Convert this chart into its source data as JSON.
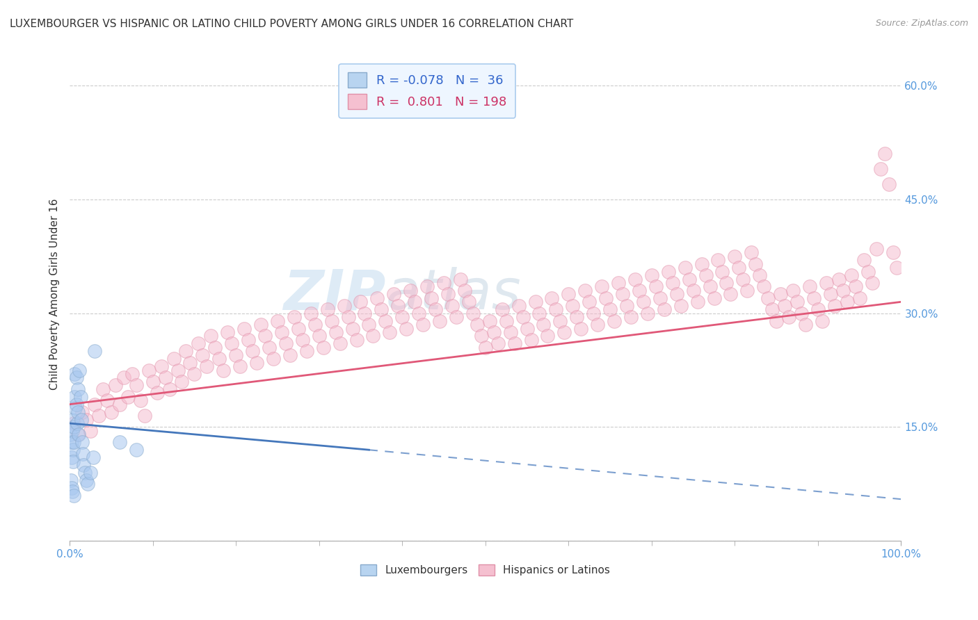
{
  "title": "LUXEMBOURGER VS HISPANIC OR LATINO CHILD POVERTY AMONG GIRLS UNDER 16 CORRELATION CHART",
  "source": "Source: ZipAtlas.com",
  "ylabel": "Child Poverty Among Girls Under 16",
  "xlim": [
    0,
    100
  ],
  "ylim": [
    0,
    65
  ],
  "yticks": [
    0,
    15,
    30,
    45,
    60
  ],
  "ytick_labels": [
    "",
    "15.0%",
    "30.0%",
    "45.0%",
    "60.0%"
  ],
  "xtick_labels": [
    "0.0%",
    "100.0%"
  ],
  "lux_color": "#a8c8f0",
  "hisp_color": "#f5b8cc",
  "lux_line_color": "#4477bb",
  "hisp_line_color": "#e05878",
  "background_color": "#ffffff",
  "grid_color": "#cccccc",
  "axis_color": "#aaaaaa",
  "tick_color": "#5599dd",
  "lux_scatter": [
    [
      0.1,
      14.0
    ],
    [
      0.2,
      13.0
    ],
    [
      0.2,
      11.0
    ],
    [
      0.3,
      16.0
    ],
    [
      0.3,
      14.5
    ],
    [
      0.4,
      12.0
    ],
    [
      0.4,
      10.5
    ],
    [
      0.5,
      15.0
    ],
    [
      0.5,
      13.0
    ],
    [
      0.6,
      22.0
    ],
    [
      0.6,
      19.0
    ],
    [
      0.7,
      17.5
    ],
    [
      0.8,
      21.5
    ],
    [
      0.8,
      18.0
    ],
    [
      0.9,
      15.5
    ],
    [
      1.0,
      20.0
    ],
    [
      1.0,
      17.0
    ],
    [
      1.1,
      14.0
    ],
    [
      1.2,
      22.5
    ],
    [
      1.3,
      19.0
    ],
    [
      1.4,
      16.0
    ],
    [
      1.5,
      13.0
    ],
    [
      1.6,
      11.5
    ],
    [
      1.7,
      10.0
    ],
    [
      1.8,
      9.0
    ],
    [
      2.0,
      8.0
    ],
    [
      2.2,
      7.5
    ],
    [
      2.5,
      9.0
    ],
    [
      2.8,
      11.0
    ],
    [
      3.0,
      25.0
    ],
    [
      0.15,
      8.0
    ],
    [
      0.25,
      7.0
    ],
    [
      0.35,
      6.5
    ],
    [
      0.45,
      6.0
    ],
    [
      6.0,
      13.0
    ],
    [
      8.0,
      12.0
    ]
  ],
  "hisp_scatter": [
    [
      0.5,
      15.5
    ],
    [
      1.0,
      14.0
    ],
    [
      1.5,
      17.0
    ],
    [
      2.0,
      16.0
    ],
    [
      2.5,
      14.5
    ],
    [
      3.0,
      18.0
    ],
    [
      3.5,
      16.5
    ],
    [
      4.0,
      20.0
    ],
    [
      4.5,
      18.5
    ],
    [
      5.0,
      17.0
    ],
    [
      5.5,
      20.5
    ],
    [
      6.0,
      18.0
    ],
    [
      6.5,
      21.5
    ],
    [
      7.0,
      19.0
    ],
    [
      7.5,
      22.0
    ],
    [
      8.0,
      20.5
    ],
    [
      8.5,
      18.5
    ],
    [
      9.0,
      16.5
    ],
    [
      9.5,
      22.5
    ],
    [
      10.0,
      21.0
    ],
    [
      10.5,
      19.5
    ],
    [
      11.0,
      23.0
    ],
    [
      11.5,
      21.5
    ],
    [
      12.0,
      20.0
    ],
    [
      12.5,
      24.0
    ],
    [
      13.0,
      22.5
    ],
    [
      13.5,
      21.0
    ],
    [
      14.0,
      25.0
    ],
    [
      14.5,
      23.5
    ],
    [
      15.0,
      22.0
    ],
    [
      15.5,
      26.0
    ],
    [
      16.0,
      24.5
    ],
    [
      16.5,
      23.0
    ],
    [
      17.0,
      27.0
    ],
    [
      17.5,
      25.5
    ],
    [
      18.0,
      24.0
    ],
    [
      18.5,
      22.5
    ],
    [
      19.0,
      27.5
    ],
    [
      19.5,
      26.0
    ],
    [
      20.0,
      24.5
    ],
    [
      20.5,
      23.0
    ],
    [
      21.0,
      28.0
    ],
    [
      21.5,
      26.5
    ],
    [
      22.0,
      25.0
    ],
    [
      22.5,
      23.5
    ],
    [
      23.0,
      28.5
    ],
    [
      23.5,
      27.0
    ],
    [
      24.0,
      25.5
    ],
    [
      24.5,
      24.0
    ],
    [
      25.0,
      29.0
    ],
    [
      25.5,
      27.5
    ],
    [
      26.0,
      26.0
    ],
    [
      26.5,
      24.5
    ],
    [
      27.0,
      29.5
    ],
    [
      27.5,
      28.0
    ],
    [
      28.0,
      26.5
    ],
    [
      28.5,
      25.0
    ],
    [
      29.0,
      30.0
    ],
    [
      29.5,
      28.5
    ],
    [
      30.0,
      27.0
    ],
    [
      30.5,
      25.5
    ],
    [
      31.0,
      30.5
    ],
    [
      31.5,
      29.0
    ],
    [
      32.0,
      27.5
    ],
    [
      32.5,
      26.0
    ],
    [
      33.0,
      31.0
    ],
    [
      33.5,
      29.5
    ],
    [
      34.0,
      28.0
    ],
    [
      34.5,
      26.5
    ],
    [
      35.0,
      31.5
    ],
    [
      35.5,
      30.0
    ],
    [
      36.0,
      28.5
    ],
    [
      36.5,
      27.0
    ],
    [
      37.0,
      32.0
    ],
    [
      37.5,
      30.5
    ],
    [
      38.0,
      29.0
    ],
    [
      38.5,
      27.5
    ],
    [
      39.0,
      32.5
    ],
    [
      39.5,
      31.0
    ],
    [
      40.0,
      29.5
    ],
    [
      40.5,
      28.0
    ],
    [
      41.0,
      33.0
    ],
    [
      41.5,
      31.5
    ],
    [
      42.0,
      30.0
    ],
    [
      42.5,
      28.5
    ],
    [
      43.0,
      33.5
    ],
    [
      43.5,
      32.0
    ],
    [
      44.0,
      30.5
    ],
    [
      44.5,
      29.0
    ],
    [
      45.0,
      34.0
    ],
    [
      45.5,
      32.5
    ],
    [
      46.0,
      31.0
    ],
    [
      46.5,
      29.5
    ],
    [
      47.0,
      34.5
    ],
    [
      47.5,
      33.0
    ],
    [
      48.0,
      31.5
    ],
    [
      48.5,
      30.0
    ],
    [
      49.0,
      28.5
    ],
    [
      49.5,
      27.0
    ],
    [
      50.0,
      25.5
    ],
    [
      50.5,
      29.0
    ],
    [
      51.0,
      27.5
    ],
    [
      51.5,
      26.0
    ],
    [
      52.0,
      30.5
    ],
    [
      52.5,
      29.0
    ],
    [
      53.0,
      27.5
    ],
    [
      53.5,
      26.0
    ],
    [
      54.0,
      31.0
    ],
    [
      54.5,
      29.5
    ],
    [
      55.0,
      28.0
    ],
    [
      55.5,
      26.5
    ],
    [
      56.0,
      31.5
    ],
    [
      56.5,
      30.0
    ],
    [
      57.0,
      28.5
    ],
    [
      57.5,
      27.0
    ],
    [
      58.0,
      32.0
    ],
    [
      58.5,
      30.5
    ],
    [
      59.0,
      29.0
    ],
    [
      59.5,
      27.5
    ],
    [
      60.0,
      32.5
    ],
    [
      60.5,
      31.0
    ],
    [
      61.0,
      29.5
    ],
    [
      61.5,
      28.0
    ],
    [
      62.0,
      33.0
    ],
    [
      62.5,
      31.5
    ],
    [
      63.0,
      30.0
    ],
    [
      63.5,
      28.5
    ],
    [
      64.0,
      33.5
    ],
    [
      64.5,
      32.0
    ],
    [
      65.0,
      30.5
    ],
    [
      65.5,
      29.0
    ],
    [
      66.0,
      34.0
    ],
    [
      66.5,
      32.5
    ],
    [
      67.0,
      31.0
    ],
    [
      67.5,
      29.5
    ],
    [
      68.0,
      34.5
    ],
    [
      68.5,
      33.0
    ],
    [
      69.0,
      31.5
    ],
    [
      69.5,
      30.0
    ],
    [
      70.0,
      35.0
    ],
    [
      70.5,
      33.5
    ],
    [
      71.0,
      32.0
    ],
    [
      71.5,
      30.5
    ],
    [
      72.0,
      35.5
    ],
    [
      72.5,
      34.0
    ],
    [
      73.0,
      32.5
    ],
    [
      73.5,
      31.0
    ],
    [
      74.0,
      36.0
    ],
    [
      74.5,
      34.5
    ],
    [
      75.0,
      33.0
    ],
    [
      75.5,
      31.5
    ],
    [
      76.0,
      36.5
    ],
    [
      76.5,
      35.0
    ],
    [
      77.0,
      33.5
    ],
    [
      77.5,
      32.0
    ],
    [
      78.0,
      37.0
    ],
    [
      78.5,
      35.5
    ],
    [
      79.0,
      34.0
    ],
    [
      79.5,
      32.5
    ],
    [
      80.0,
      37.5
    ],
    [
      80.5,
      36.0
    ],
    [
      81.0,
      34.5
    ],
    [
      81.5,
      33.0
    ],
    [
      82.0,
      38.0
    ],
    [
      82.5,
      36.5
    ],
    [
      83.0,
      35.0
    ],
    [
      83.5,
      33.5
    ],
    [
      84.0,
      32.0
    ],
    [
      84.5,
      30.5
    ],
    [
      85.0,
      29.0
    ],
    [
      85.5,
      32.5
    ],
    [
      86.0,
      31.0
    ],
    [
      86.5,
      29.5
    ],
    [
      87.0,
      33.0
    ],
    [
      87.5,
      31.5
    ],
    [
      88.0,
      30.0
    ],
    [
      88.5,
      28.5
    ],
    [
      89.0,
      33.5
    ],
    [
      89.5,
      32.0
    ],
    [
      90.0,
      30.5
    ],
    [
      90.5,
      29.0
    ],
    [
      91.0,
      34.0
    ],
    [
      91.5,
      32.5
    ],
    [
      92.0,
      31.0
    ],
    [
      92.5,
      34.5
    ],
    [
      93.0,
      33.0
    ],
    [
      93.5,
      31.5
    ],
    [
      94.0,
      35.0
    ],
    [
      94.5,
      33.5
    ],
    [
      95.0,
      32.0
    ],
    [
      95.5,
      37.0
    ],
    [
      96.0,
      35.5
    ],
    [
      96.5,
      34.0
    ],
    [
      97.0,
      38.5
    ],
    [
      97.5,
      49.0
    ],
    [
      98.0,
      51.0
    ],
    [
      98.5,
      47.0
    ],
    [
      99.0,
      38.0
    ],
    [
      99.5,
      36.0
    ]
  ],
  "lux_trend_x0": 0,
  "lux_trend_x1": 36,
  "lux_trend_y0": 15.5,
  "lux_trend_y1": 12.0,
  "lux_dash_x0": 36,
  "lux_dash_x1": 100,
  "lux_dash_y0": 12.0,
  "lux_dash_y1": 5.5,
  "hisp_trend_x0": 0,
  "hisp_trend_x1": 100,
  "hisp_trend_y0": 18.0,
  "hisp_trend_y1": 31.5
}
